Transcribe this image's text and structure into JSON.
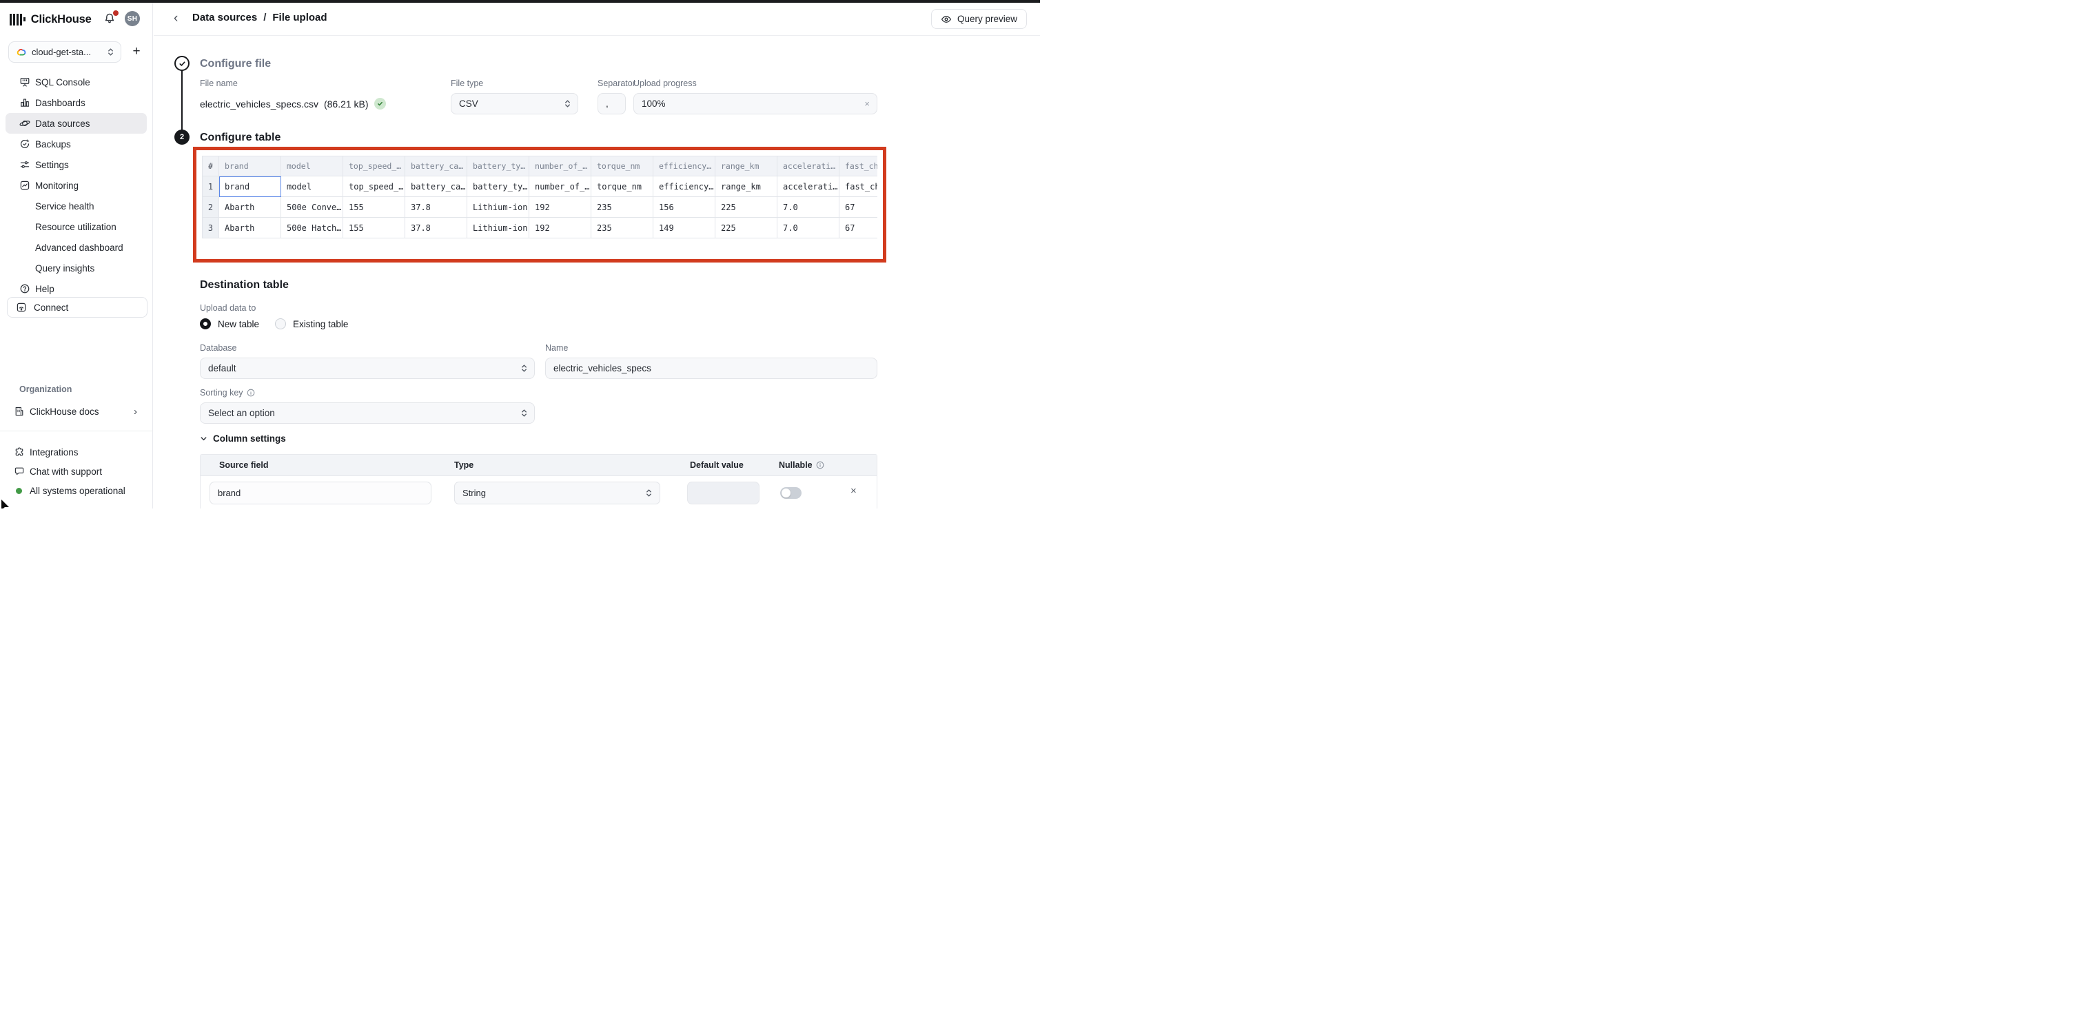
{
  "sidebar": {
    "brand": "ClickHouse",
    "avatar_initials": "SH",
    "service_selector": {
      "label": "cloud-get-sta...",
      "add_label": "+"
    },
    "nav": [
      {
        "label": "SQL Console",
        "icon": "sql-console-icon"
      },
      {
        "label": "Dashboards",
        "icon": "dashboards-icon"
      },
      {
        "label": "Data sources",
        "icon": "data-sources-icon",
        "selected": true
      },
      {
        "label": "Backups",
        "icon": "backups-icon"
      },
      {
        "label": "Settings",
        "icon": "settings-icon"
      },
      {
        "label": "Monitoring",
        "icon": "monitoring-icon"
      },
      {
        "label": "Service health",
        "indent": true
      },
      {
        "label": "Resource utilization",
        "indent": true
      },
      {
        "label": "Advanced dashboard",
        "indent": true
      },
      {
        "label": "Query insights",
        "indent": true
      },
      {
        "label": "Help",
        "icon": "help-icon"
      }
    ],
    "connect_label": "Connect",
    "organization_label": "Organization",
    "docs_label": "ClickHouse docs",
    "footer": [
      {
        "label": "Integrations",
        "icon": "integrations-icon"
      },
      {
        "label": "Chat with support",
        "icon": "chat-icon"
      },
      {
        "label": "All systems operational",
        "icon": "status-dot"
      }
    ]
  },
  "header": {
    "breadcrumb_1": "Data sources",
    "separator": "/",
    "breadcrumb_2": "File upload",
    "query_preview_label": "Query preview"
  },
  "configure_file": {
    "step": "1",
    "title": "Configure file",
    "file_name_label": "File name",
    "file_name": "electric_vehicles_specs.csv",
    "file_size": "(86.21 kB)",
    "file_type_label": "File type",
    "file_type_value": "CSV",
    "separator_label": "Separator",
    "separator_value": ",",
    "upload_progress_label": "Upload progress",
    "upload_progress_value": "100%",
    "upload_progress_close": "×"
  },
  "configure_table": {
    "step": "2",
    "title": "Configure table",
    "columns": [
      "#",
      "brand",
      "model",
      "top_speed_…",
      "battery_ca…",
      "battery_ty…",
      "number_of_…",
      "torque_nm",
      "efficiency…",
      "range_km",
      "accelerati…",
      "fast_cha"
    ],
    "rows": [
      {
        "num": "1",
        "focused_cell": 0,
        "cells": [
          "brand",
          "model",
          "top_speed_…",
          "battery_ca…",
          "battery_ty…",
          "number_of_…",
          "torque_nm",
          "efficiency…",
          "range_km",
          "accelerati…",
          "fast_cha"
        ]
      },
      {
        "num": "2",
        "cells": [
          "Abarth",
          "500e Conve…",
          "155",
          "37.8",
          "Lithium-ion",
          "192",
          "235",
          "156",
          "225",
          "7.0",
          "67"
        ]
      },
      {
        "num": "3",
        "cells": [
          "Abarth",
          "500e Hatch…",
          "155",
          "37.8",
          "Lithium-ion",
          "192",
          "235",
          "149",
          "225",
          "7.0",
          "67"
        ]
      }
    ]
  },
  "destination": {
    "title": "Destination table",
    "upload_data_to_label": "Upload data to",
    "radio_new_label": "New table",
    "radio_existing_label": "Existing table",
    "database_label": "Database",
    "database_value": "default",
    "name_label": "Name",
    "name_value": "electric_vehicles_specs",
    "sorting_key_label": "Sorting key",
    "sorting_key_placeholder": "Select an option"
  },
  "column_settings": {
    "title": "Column settings",
    "headers": {
      "source_field": "Source field",
      "type": "Type",
      "default_value": "Default value",
      "nullable": "Nullable"
    },
    "rows": [
      {
        "source_field": "brand",
        "type": "String",
        "default_value": "",
        "nullable": false,
        "remove": "×"
      }
    ]
  },
  "colors": {
    "annotation_red": "#d23b1e",
    "focus_blue": "#5c88e8",
    "status_green": "#429a46",
    "badge_green_bg": "#cfe8cf",
    "notification_red": "#bf3026"
  }
}
